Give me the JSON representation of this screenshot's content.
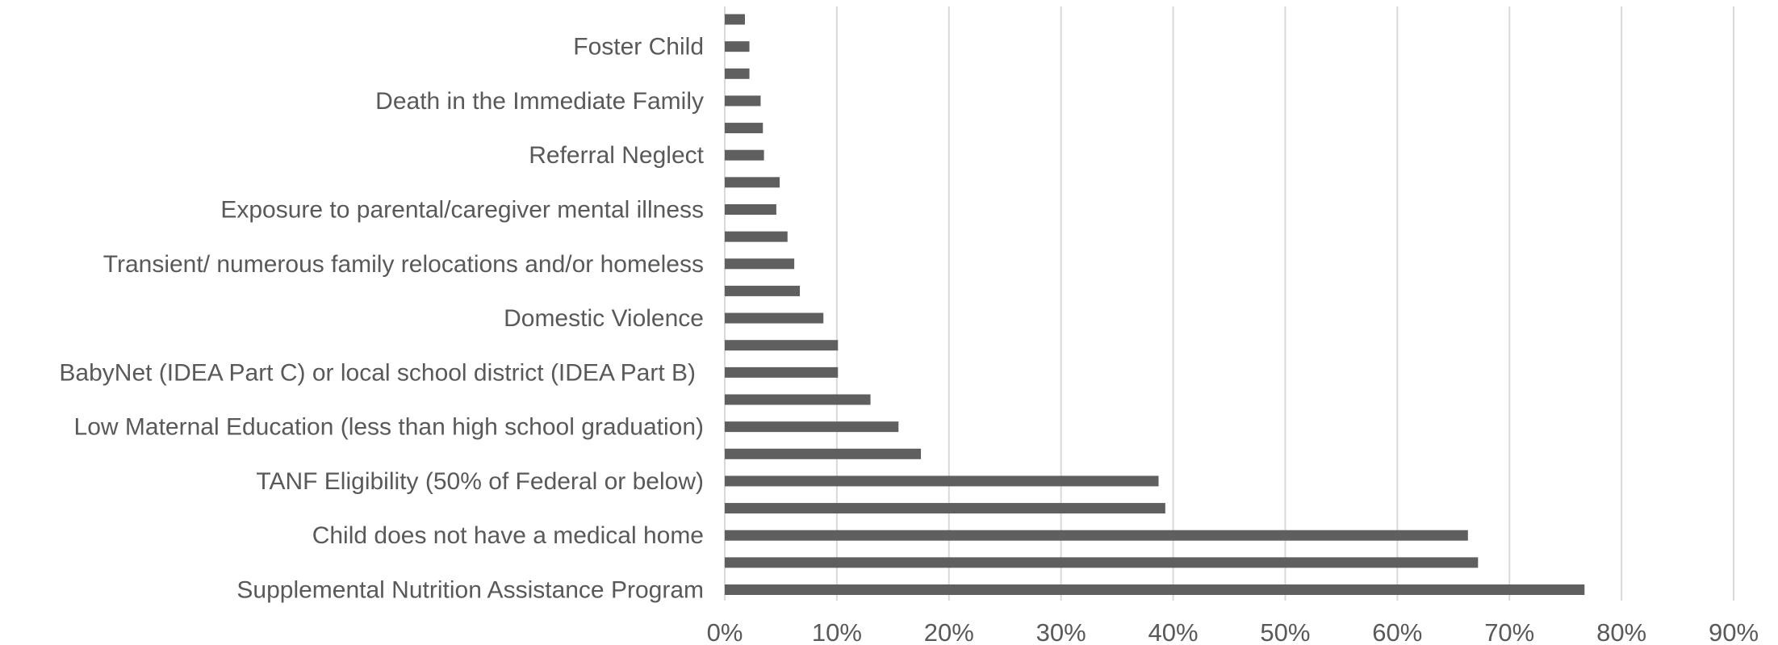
{
  "chart_data": {
    "type": "bar",
    "orientation": "horizontal",
    "title": "",
    "xlabel": "",
    "ylabel": "",
    "xlim": [
      0,
      90
    ],
    "x_ticks": [
      "0%",
      "10%",
      "20%",
      "30%",
      "40%",
      "50%",
      "60%",
      "70%",
      "80%",
      "90%"
    ],
    "grid": true,
    "legend": "none",
    "bar_color": "#5f5f5f",
    "categories": [
      "Supplemental Nutrition Assistance Program",
      "",
      "Child does not have a medical home",
      "",
      "TANF Eligibility (50% of Federal or below)",
      "",
      "Low Maternal Education (less than high school graduation)",
      "",
      "BabyNet (IDEA Part C) or local school district (IDEA Part B)",
      "",
      "Domestic Violence",
      "",
      "Transient/ numerous family relocations and/or homeless",
      "",
      "Exposure to parental/caregiver mental illness",
      "",
      "Referral Neglect",
      "",
      "Death in the Immediate Family",
      "",
      "Foster Child",
      ""
    ],
    "values": [
      76.7,
      67.2,
      66.3,
      39.3,
      38.7,
      17.5,
      15.5,
      13.0,
      10.1,
      10.1,
      8.8,
      6.7,
      6.2,
      5.6,
      4.6,
      4.9,
      3.5,
      3.4,
      3.2,
      2.2,
      2.2,
      1.8
    ]
  }
}
